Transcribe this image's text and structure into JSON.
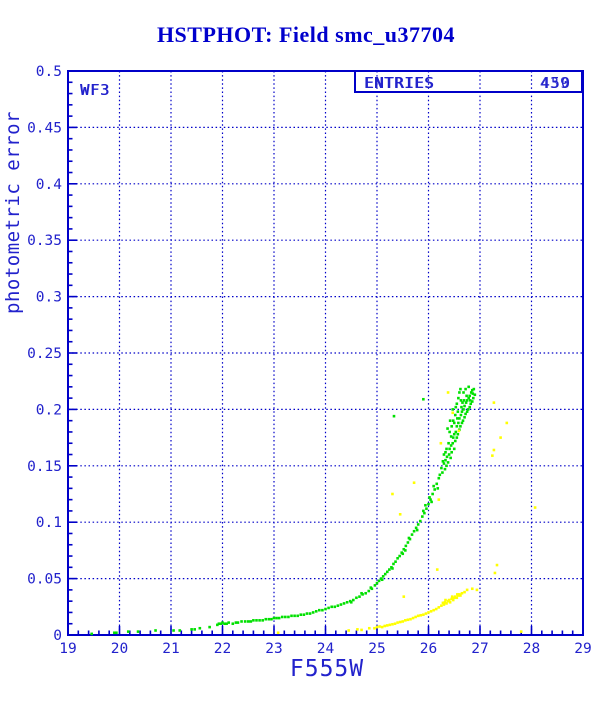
{
  "header": {
    "title": "HSTPHOT: Field smc_u37704"
  },
  "plot": {
    "detector_label": "WF3",
    "entries": {
      "label": "ENTRIES",
      "values": [
        "450",
        "439"
      ]
    }
  },
  "colors": {
    "title": "#0000CC",
    "frame": "#0000C8",
    "grid": "#0000C8",
    "text": "#2222CC",
    "green": "#00E000",
    "yellow": "#FFFF00",
    "background": "#FFFFFF"
  },
  "axes": {
    "x_tick_labels": [
      "19",
      "20",
      "21",
      "22",
      "23",
      "24",
      "25",
      "26",
      "27",
      "28",
      "29"
    ],
    "y_tick_labels": [
      "0",
      "0.05",
      "0.1",
      "0.15",
      "0.2",
      "0.25",
      "0.3",
      "0.35",
      "0.4",
      "0.45",
      "0.5"
    ]
  },
  "chart_data": {
    "type": "scatter",
    "title": "HSTPHOT: Field smc_u37704",
    "xlabel": "F555W",
    "ylabel": "photometric error",
    "xlim": [
      19,
      29
    ],
    "ylim": [
      0,
      0.5
    ],
    "x_major_tick": 1,
    "x_minor_tick": 0.2,
    "y_major_tick": 0.05,
    "y_minor_tick": 0.01,
    "grid": "dotted-at-major-ticks",
    "legend": "none",
    "annotations": [
      "WF3",
      "ENTRIES 450 / 439 (overprinted)"
    ],
    "series": [
      {
        "name": "chip-stars-green",
        "color": "#00E000",
        "points": [
          [
            19.46,
            0.001
          ],
          [
            19.9,
            0.002
          ],
          [
            19.94,
            0.002
          ],
          [
            20.17,
            0.003
          ],
          [
            20.36,
            0.003
          ],
          [
            20.7,
            0.004
          ],
          [
            21.05,
            0.004
          ],
          [
            21.17,
            0.004
          ],
          [
            21.4,
            0.005
          ],
          [
            21.46,
            0.005
          ],
          [
            21.56,
            0.006
          ],
          [
            21.75,
            0.007
          ],
          [
            21.9,
            0.009
          ],
          [
            21.93,
            0.01
          ],
          [
            21.97,
            0.01
          ],
          [
            22.0,
            0.011
          ],
          [
            22.04,
            0.01
          ],
          [
            22.08,
            0.01
          ],
          [
            22.12,
            0.011
          ],
          [
            22.2,
            0.01
          ],
          [
            22.26,
            0.011
          ],
          [
            22.3,
            0.011
          ],
          [
            22.37,
            0.012
          ],
          [
            22.44,
            0.012
          ],
          [
            22.5,
            0.012
          ],
          [
            22.55,
            0.012
          ],
          [
            22.6,
            0.013
          ],
          [
            22.66,
            0.013
          ],
          [
            22.72,
            0.013
          ],
          [
            22.78,
            0.013
          ],
          [
            22.84,
            0.014
          ],
          [
            22.9,
            0.014
          ],
          [
            22.95,
            0.014
          ],
          [
            23.0,
            0.015
          ],
          [
            23.05,
            0.015
          ],
          [
            23.1,
            0.015
          ],
          [
            23.16,
            0.016
          ],
          [
            23.22,
            0.016
          ],
          [
            23.28,
            0.016
          ],
          [
            23.34,
            0.017
          ],
          [
            23.4,
            0.017
          ],
          [
            23.46,
            0.017
          ],
          [
            23.52,
            0.018
          ],
          [
            23.58,
            0.018
          ],
          [
            23.64,
            0.019
          ],
          [
            23.7,
            0.019
          ],
          [
            23.76,
            0.02
          ],
          [
            23.82,
            0.021
          ],
          [
            23.88,
            0.022
          ],
          [
            23.94,
            0.022
          ],
          [
            24.0,
            0.023
          ],
          [
            24.06,
            0.024
          ],
          [
            24.12,
            0.025
          ],
          [
            24.18,
            0.025
          ],
          [
            24.24,
            0.026
          ],
          [
            24.3,
            0.027
          ],
          [
            24.36,
            0.028
          ],
          [
            24.42,
            0.029
          ],
          [
            24.48,
            0.03
          ],
          [
            24.54,
            0.031
          ],
          [
            24.6,
            0.033
          ],
          [
            24.66,
            0.034
          ],
          [
            24.72,
            0.036
          ],
          [
            24.78,
            0.037
          ],
          [
            24.84,
            0.039
          ],
          [
            24.9,
            0.041
          ],
          [
            24.96,
            0.044
          ],
          [
            25.0,
            0.046
          ],
          [
            24.5,
            0.029
          ],
          [
            24.7,
            0.037
          ],
          [
            24.88,
            0.042
          ],
          [
            25.04,
            0.048
          ],
          [
            25.08,
            0.05
          ],
          [
            25.12,
            0.052
          ],
          [
            25.16,
            0.054
          ],
          [
            25.2,
            0.056
          ],
          [
            25.24,
            0.058
          ],
          [
            25.28,
            0.06
          ],
          [
            25.32,
            0.063
          ],
          [
            25.36,
            0.065
          ],
          [
            25.4,
            0.068
          ],
          [
            25.44,
            0.07
          ],
          [
            25.48,
            0.073
          ],
          [
            25.52,
            0.076
          ],
          [
            25.56,
            0.079
          ],
          [
            25.6,
            0.082
          ],
          [
            25.64,
            0.085
          ],
          [
            25.68,
            0.089
          ],
          [
            25.1,
            0.049
          ],
          [
            25.3,
            0.059
          ],
          [
            25.5,
            0.072
          ],
          [
            25.62,
            0.086
          ],
          [
            25.55,
            0.075
          ],
          [
            25.72,
            0.092
          ],
          [
            25.76,
            0.095
          ],
          [
            25.8,
            0.098
          ],
          [
            25.84,
            0.101
          ],
          [
            25.88,
            0.105
          ],
          [
            25.92,
            0.108
          ],
          [
            25.96,
            0.112
          ],
          [
            26.0,
            0.116
          ],
          [
            26.04,
            0.12
          ],
          [
            26.08,
            0.125
          ],
          [
            26.12,
            0.129
          ],
          [
            26.16,
            0.134
          ],
          [
            26.2,
            0.139
          ],
          [
            25.78,
            0.093
          ],
          [
            25.9,
            0.11
          ],
          [
            26.02,
            0.122
          ],
          [
            26.1,
            0.132
          ],
          [
            26.18,
            0.13
          ],
          [
            26.06,
            0.118
          ],
          [
            25.94,
            0.115
          ],
          [
            26.22,
            0.142
          ],
          [
            26.25,
            0.148
          ],
          [
            26.27,
            0.144
          ],
          [
            26.3,
            0.152
          ],
          [
            26.32,
            0.147
          ],
          [
            26.33,
            0.155
          ],
          [
            26.35,
            0.15
          ],
          [
            26.36,
            0.158
          ],
          [
            26.38,
            0.153
          ],
          [
            26.4,
            0.16
          ],
          [
            26.41,
            0.165
          ],
          [
            26.43,
            0.157
          ],
          [
            26.44,
            0.168
          ],
          [
            26.45,
            0.162
          ],
          [
            26.47,
            0.17
          ],
          [
            26.48,
            0.175
          ],
          [
            26.5,
            0.165
          ],
          [
            26.5,
            0.178
          ],
          [
            26.52,
            0.172
          ],
          [
            26.53,
            0.18
          ],
          [
            26.55,
            0.175
          ],
          [
            26.55,
            0.185
          ],
          [
            26.57,
            0.178
          ],
          [
            26.58,
            0.188
          ],
          [
            26.6,
            0.182
          ],
          [
            26.6,
            0.192
          ],
          [
            26.62,
            0.185
          ],
          [
            26.63,
            0.195
          ],
          [
            26.65,
            0.188
          ],
          [
            26.65,
            0.198
          ],
          [
            26.67,
            0.19
          ],
          [
            26.68,
            0.2
          ],
          [
            26.7,
            0.193
          ],
          [
            26.7,
            0.203
          ],
          [
            26.72,
            0.196
          ],
          [
            26.73,
            0.206
          ],
          [
            26.75,
            0.198
          ],
          [
            26.75,
            0.208
          ],
          [
            26.77,
            0.2
          ],
          [
            26.78,
            0.21
          ],
          [
            26.8,
            0.202
          ],
          [
            26.8,
            0.212
          ],
          [
            26.82,
            0.205
          ],
          [
            26.83,
            0.215
          ],
          [
            26.85,
            0.207
          ],
          [
            26.85,
            0.217
          ],
          [
            26.87,
            0.21
          ],
          [
            26.88,
            0.218
          ],
          [
            26.9,
            0.213
          ],
          [
            26.63,
            0.208
          ],
          [
            26.55,
            0.205
          ],
          [
            26.47,
            0.2
          ],
          [
            26.42,
            0.19
          ],
          [
            26.37,
            0.183
          ],
          [
            26.58,
            0.21
          ],
          [
            26.52,
            0.195
          ],
          [
            26.45,
            0.185
          ],
          [
            26.68,
            0.215
          ],
          [
            26.72,
            0.218
          ],
          [
            26.78,
            0.22
          ],
          [
            26.6,
            0.215
          ],
          [
            26.66,
            0.206
          ],
          [
            26.5,
            0.188
          ],
          [
            26.44,
            0.176
          ],
          [
            26.39,
            0.17
          ],
          [
            26.35,
            0.165
          ],
          [
            26.3,
            0.16
          ],
          [
            26.28,
            0.154
          ],
          [
            26.48,
            0.19
          ],
          [
            26.57,
            0.198
          ],
          [
            26.64,
            0.202
          ],
          [
            26.69,
            0.208
          ],
          [
            26.74,
            0.212
          ],
          [
            26.81,
            0.208
          ],
          [
            26.86,
            0.214
          ],
          [
            26.53,
            0.202
          ],
          [
            26.41,
            0.18
          ],
          [
            26.33,
            0.162
          ],
          [
            26.62,
            0.218
          ],
          [
            26.56,
            0.192
          ],
          [
            25.33,
            0.194
          ],
          [
            25.9,
            0.209
          ]
        ]
      },
      {
        "name": "chip-stars-yellow",
        "color": "#FFFF00",
        "points": [
          [
            23.08,
            0.002
          ],
          [
            24.45,
            0.004
          ],
          [
            24.62,
            0.005
          ],
          [
            24.7,
            0.0045
          ],
          [
            24.85,
            0.006
          ],
          [
            24.95,
            0.006
          ],
          [
            25.0,
            0.007
          ],
          [
            25.05,
            0.0075
          ],
          [
            25.1,
            0.007
          ],
          [
            25.15,
            0.008
          ],
          [
            25.2,
            0.0085
          ],
          [
            25.25,
            0.009
          ],
          [
            25.3,
            0.0095
          ],
          [
            25.35,
            0.01
          ],
          [
            25.4,
            0.011
          ],
          [
            25.45,
            0.0115
          ],
          [
            25.5,
            0.012
          ],
          [
            25.55,
            0.013
          ],
          [
            25.6,
            0.0135
          ],
          [
            25.65,
            0.014
          ],
          [
            25.7,
            0.015
          ],
          [
            25.75,
            0.016
          ],
          [
            25.8,
            0.017
          ],
          [
            25.85,
            0.0175
          ],
          [
            25.9,
            0.018
          ],
          [
            25.95,
            0.019
          ],
          [
            26.0,
            0.02
          ],
          [
            26.05,
            0.021
          ],
          [
            26.1,
            0.022
          ],
          [
            26.15,
            0.023
          ],
          [
            26.2,
            0.0245
          ],
          [
            26.25,
            0.026
          ],
          [
            26.3,
            0.027
          ],
          [
            26.32,
            0.029
          ],
          [
            26.35,
            0.028
          ],
          [
            26.38,
            0.03
          ],
          [
            26.4,
            0.031
          ],
          [
            26.42,
            0.029
          ],
          [
            26.45,
            0.032
          ],
          [
            26.48,
            0.031
          ],
          [
            26.5,
            0.033
          ],
          [
            26.52,
            0.034
          ],
          [
            26.55,
            0.033
          ],
          [
            26.58,
            0.035
          ],
          [
            26.6,
            0.036
          ],
          [
            26.65,
            0.037
          ],
          [
            26.7,
            0.038
          ],
          [
            26.75,
            0.04
          ],
          [
            26.85,
            0.041
          ],
          [
            26.94,
            0.04
          ],
          [
            26.33,
            0.031
          ],
          [
            26.46,
            0.034
          ],
          [
            26.56,
            0.036
          ],
          [
            26.62,
            0.035
          ],
          [
            26.28,
            0.0285
          ],
          [
            26.17,
            0.058
          ],
          [
            25.52,
            0.034
          ],
          [
            25.3,
            0.125
          ],
          [
            25.45,
            0.107
          ],
          [
            25.72,
            0.135
          ],
          [
            26.24,
            0.17
          ],
          [
            26.38,
            0.215
          ],
          [
            26.47,
            0.197
          ],
          [
            26.59,
            0.181
          ],
          [
            26.2,
            0.12
          ],
          [
            27.27,
            0.206
          ],
          [
            27.52,
            0.188
          ],
          [
            27.4,
            0.175
          ],
          [
            27.27,
            0.164
          ],
          [
            27.24,
            0.159
          ],
          [
            28.07,
            0.113
          ],
          [
            27.33,
            0.062
          ],
          [
            27.29,
            0.055
          ],
          [
            27.8,
            0.003
          ]
        ]
      }
    ]
  }
}
